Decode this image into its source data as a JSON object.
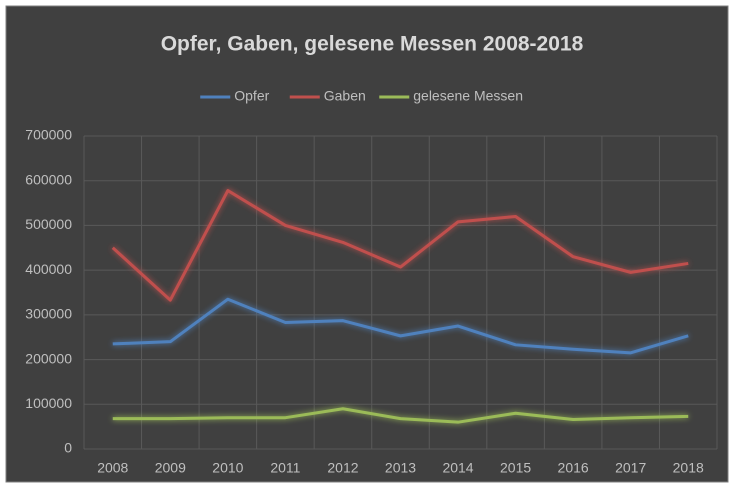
{
  "chart_data": {
    "type": "line",
    "title": "Opfer, Gaben, gelesene Messen 2008-2018",
    "categories": [
      "2008",
      "2009",
      "2010",
      "2011",
      "2012",
      "2013",
      "2014",
      "2015",
      "2016",
      "2017",
      "2018"
    ],
    "series": [
      {
        "name": "Opfer",
        "color": "#4f81bd",
        "values": [
          235000,
          240000,
          335000,
          283000,
          287000,
          253000,
          275000,
          233000,
          223000,
          215000,
          253000
        ]
      },
      {
        "name": "Gaben",
        "color": "#c0504d",
        "values": [
          450000,
          333000,
          578000,
          500000,
          462000,
          407000,
          508000,
          520000,
          430000,
          395000,
          415000
        ]
      },
      {
        "name": "gelesene Messen",
        "color": "#9bbb59",
        "values": [
          68000,
          68000,
          70000,
          70000,
          90000,
          68000,
          60000,
          80000,
          66000,
          70000,
          73000
        ]
      }
    ],
    "ylim": [
      0,
      700000
    ],
    "yticks": [
      0,
      100000,
      200000,
      300000,
      400000,
      500000,
      600000,
      700000
    ],
    "grid": true,
    "legend": "top"
  }
}
